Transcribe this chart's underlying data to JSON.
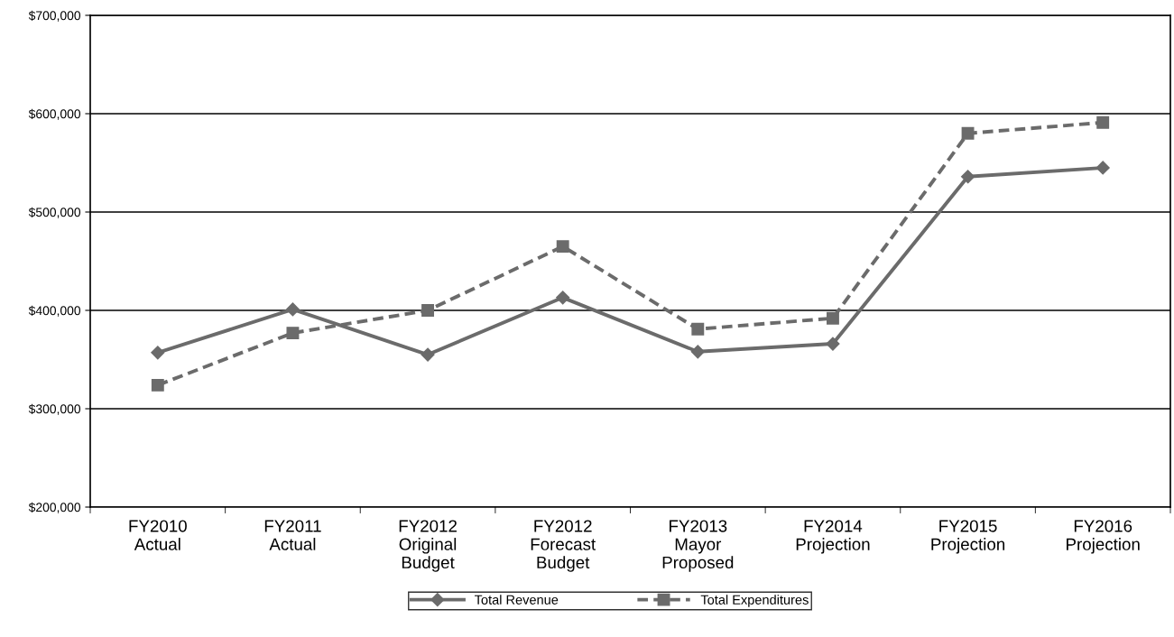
{
  "chart_data": {
    "type": "line",
    "categories": [
      "FY2010\nActual",
      "FY2011\nActual",
      "FY2012\nOriginal\nBudget",
      "FY2012\nForecast\nBudget",
      "FY2013\nMayor\nProposed",
      "FY2014\nProjection",
      "FY2015\nProjection",
      "FY2016\nProjection"
    ],
    "series": [
      {
        "name": "Total Revenue",
        "color": "#6b6b6b",
        "marker": "diamond",
        "line_style": "solid",
        "values": [
          357000,
          401000,
          355000,
          413000,
          358000,
          366000,
          536000,
          545000
        ]
      },
      {
        "name": "Total Expenditures",
        "color": "#6b6b6b",
        "marker": "square",
        "line_style": "dashed",
        "values": [
          324000,
          377000,
          400000,
          465000,
          381000,
          392000,
          580000,
          591000
        ]
      }
    ],
    "ylim": [
      200000,
      700000
    ],
    "yticks": [
      {
        "value": 200000,
        "label": "$200,000"
      },
      {
        "value": 300000,
        "label": "$300,000"
      },
      {
        "value": 400000,
        "label": "$400,000"
      },
      {
        "value": 500000,
        "label": "$500,000"
      },
      {
        "value": 600000,
        "label": "$600,000"
      },
      {
        "value": 700000,
        "label": "$700,000"
      }
    ],
    "grid": "y",
    "legend": "bottom"
  }
}
